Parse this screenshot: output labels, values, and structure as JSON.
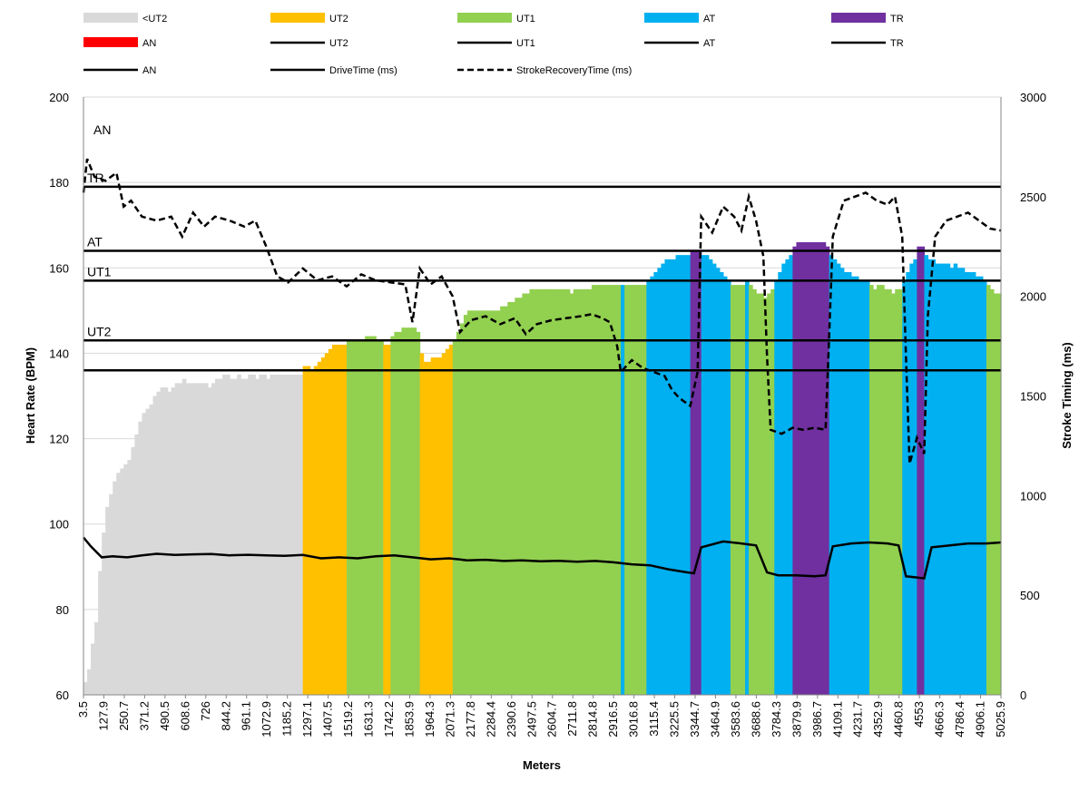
{
  "chart_data": {
    "type": "bar",
    "xlabel": "Meters",
    "ylabel": "Heart Rate (BPM)",
    "y2label": "Stroke Timing (ms)",
    "ylim": [
      60,
      200
    ],
    "y2lim": [
      0,
      3000
    ],
    "yticks": [
      60,
      80,
      100,
      120,
      140,
      160,
      180,
      200
    ],
    "y2ticks": [
      0,
      500,
      1000,
      1500,
      2000,
      2500,
      3000
    ],
    "grid": "horizontal",
    "legend_position": "top",
    "x_ticks": [
      "3.5",
      "127.9",
      "250.7",
      "371.2",
      "490.5",
      "608.6",
      "726",
      "844.2",
      "961.1",
      "1072.9",
      "1185.2",
      "1297.1",
      "1407.5",
      "1519.2",
      "1631.3",
      "1742.2",
      "1853.9",
      "1964.3",
      "2071.3",
      "2177.8",
      "2284.4",
      "2390.6",
      "2497.5",
      "2604.7",
      "2711.8",
      "2814.8",
      "2916.5",
      "3016.8",
      "3115.4",
      "3225.5",
      "3344.7",
      "3464.9",
      "3583.6",
      "3688.6",
      "3784.3",
      "3879.9",
      "3986.7",
      "4109.1",
      "4231.7",
      "4352.9",
      "4460.8",
      "4553",
      "4666.3",
      "4786.4",
      "4906.1",
      "5025.9"
    ],
    "zones": [
      {
        "name": "<UT2",
        "color": "#D9D9D9"
      },
      {
        "name": "UT2",
        "color": "#FFC000"
      },
      {
        "name": "UT1",
        "color": "#92D050"
      },
      {
        "name": "AT",
        "color": "#00B0F0"
      },
      {
        "name": "TR",
        "color": "#7030A0"
      },
      {
        "name": "AN",
        "color": "#FF0000"
      }
    ],
    "legend": [
      {
        "label": "<UT2",
        "kind": "swatch",
        "color": "#D9D9D9"
      },
      {
        "label": "UT2",
        "kind": "swatch",
        "color": "#FFC000"
      },
      {
        "label": "UT1",
        "kind": "swatch",
        "color": "#92D050"
      },
      {
        "label": "AT",
        "kind": "swatch",
        "color": "#00B0F0"
      },
      {
        "label": "TR",
        "kind": "swatch",
        "color": "#7030A0"
      },
      {
        "label": "AN",
        "kind": "swatch",
        "color": "#FF0000"
      },
      {
        "label": "UT2",
        "kind": "line"
      },
      {
        "label": "UT1",
        "kind": "line"
      },
      {
        "label": "AT",
        "kind": "line"
      },
      {
        "label": "TR",
        "kind": "line"
      },
      {
        "label": "AN",
        "kind": "line"
      },
      {
        "label": "DriveTime (ms)",
        "kind": "line"
      },
      {
        "label": "StrokeRecoveryTime (ms)",
        "kind": "dash"
      }
    ],
    "thresholds": [
      {
        "label": "AN",
        "value": 192
      },
      {
        "label": "TR",
        "value": 179
      },
      {
        "label": "AT",
        "value": 164
      },
      {
        "label": "UT1",
        "value": 157
      },
      {
        "label": "UT2",
        "value": 143
      },
      {
        "label": "",
        "value": 136
      }
    ],
    "heart_rate_segments": [
      {
        "start": 0,
        "end": 8,
        "zone": "<UT2",
        "hr": [
          63,
          66,
          72,
          77,
          89,
          98,
          104,
          107
        ]
      },
      {
        "start": 8,
        "end": 20,
        "zone": "<UT2",
        "hr": [
          110,
          112,
          113,
          114,
          115,
          118,
          121,
          124,
          126,
          127,
          128,
          130
        ]
      },
      {
        "start": 20,
        "end": 60,
        "zone": "<UT2",
        "hr": [
          131,
          132,
          132,
          131,
          132,
          133,
          133,
          134,
          133,
          133,
          133,
          133,
          133,
          133,
          132,
          133,
          134,
          134,
          135,
          135,
          134,
          134,
          135,
          134,
          134,
          135,
          135,
          134,
          135,
          135,
          134,
          135,
          135,
          135,
          135,
          135,
          135,
          135,
          135,
          135
        ]
      },
      {
        "start": 60,
        "end": 72,
        "zone": "UT2",
        "hr": [
          137,
          137,
          136,
          137,
          138,
          139,
          140,
          141,
          142,
          142,
          142,
          142
        ]
      },
      {
        "start": 72,
        "end": 82,
        "zone": "UT1",
        "hr": [
          143,
          143,
          143,
          143,
          143,
          144,
          144,
          144,
          143,
          143
        ]
      },
      {
        "start": 82,
        "end": 84,
        "zone": "UT2",
        "hr": [
          142,
          142
        ]
      },
      {
        "start": 84,
        "end": 92,
        "zone": "UT1",
        "hr": [
          144,
          145,
          145,
          146,
          146,
          146,
          146,
          145
        ]
      },
      {
        "start": 92,
        "end": 101,
        "zone": "UT2",
        "hr": [
          140,
          138,
          138,
          139,
          139,
          139,
          140,
          141,
          142
        ]
      },
      {
        "start": 101,
        "end": 147,
        "zone": "UT1",
        "hr": [
          143,
          145,
          147,
          149,
          150,
          150,
          150,
          150,
          150,
          150,
          150,
          150,
          150,
          151,
          151,
          152,
          152,
          153,
          153,
          154,
          154,
          155,
          155,
          155,
          155,
          155,
          155,
          155,
          155,
          155,
          155,
          155,
          154,
          155,
          155,
          155,
          155,
          155,
          156,
          156,
          156,
          156,
          156,
          156,
          156,
          156
        ]
      },
      {
        "start": 147,
        "end": 148,
        "zone": "AT",
        "hr": [
          156
        ]
      },
      {
        "start": 148,
        "end": 154,
        "zone": "UT1",
        "hr": [
          156,
          156,
          156,
          156,
          156,
          156
        ]
      },
      {
        "start": 154,
        "end": 166,
        "zone": "AT",
        "hr": [
          157,
          158,
          159,
          160,
          161,
          162,
          162,
          162,
          163,
          163,
          163,
          163
        ]
      },
      {
        "start": 166,
        "end": 169,
        "zone": "TR",
        "hr": [
          164,
          164,
          164
        ]
      },
      {
        "start": 169,
        "end": 177,
        "zone": "AT",
        "hr": [
          163,
          163,
          162,
          161,
          160,
          159,
          158,
          157
        ]
      },
      {
        "start": 177,
        "end": 181,
        "zone": "UT1",
        "hr": [
          156,
          156,
          156,
          156
        ]
      },
      {
        "start": 181,
        "end": 182,
        "zone": "AT",
        "hr": [
          157
        ]
      },
      {
        "start": 182,
        "end": 189,
        "zone": "UT1",
        "hr": [
          156,
          155,
          154,
          154,
          153,
          154,
          155
        ]
      },
      {
        "start": 189,
        "end": 194,
        "zone": "AT",
        "hr": [
          157,
          159,
          161,
          162,
          163
        ]
      },
      {
        "start": 194,
        "end": 204,
        "zone": "TR",
        "hr": [
          165,
          166,
          166,
          166,
          166,
          166,
          166,
          166,
          166,
          165
        ]
      },
      {
        "start": 204,
        "end": 215,
        "zone": "AT",
        "hr": [
          163,
          162,
          161,
          160,
          159,
          159,
          158,
          158,
          157,
          157,
          157
        ]
      },
      {
        "start": 215,
        "end": 224,
        "zone": "UT1",
        "hr": [
          156,
          155,
          156,
          156,
          155,
          155,
          154,
          155,
          155
        ]
      },
      {
        "start": 224,
        "end": 228,
        "zone": "AT",
        "hr": [
          157,
          159,
          161,
          162
        ]
      },
      {
        "start": 228,
        "end": 230,
        "zone": "TR",
        "hr": [
          165,
          165
        ]
      },
      {
        "start": 230,
        "end": 247,
        "zone": "AT",
        "hr": [
          163,
          162,
          162,
          161,
          161,
          161,
          161,
          160,
          161,
          160,
          160,
          159,
          159,
          159,
          158,
          158,
          157
        ]
      },
      {
        "start": 247,
        "end": 251,
        "zone": "UT1",
        "hr": [
          156,
          155,
          154,
          154
        ]
      }
    ],
    "drive_time_ms": [
      {
        "x": 0,
        "y": 790
      },
      {
        "x": 2,
        "y": 745
      },
      {
        "x": 5,
        "y": 690
      },
      {
        "x": 8,
        "y": 695
      },
      {
        "x": 12,
        "y": 690
      },
      {
        "x": 16,
        "y": 700
      },
      {
        "x": 20,
        "y": 708
      },
      {
        "x": 25,
        "y": 702
      },
      {
        "x": 30,
        "y": 705
      },
      {
        "x": 35,
        "y": 707
      },
      {
        "x": 40,
        "y": 700
      },
      {
        "x": 45,
        "y": 703
      },
      {
        "x": 50,
        "y": 700
      },
      {
        "x": 55,
        "y": 698
      },
      {
        "x": 60,
        "y": 702
      },
      {
        "x": 65,
        "y": 685
      },
      {
        "x": 70,
        "y": 690
      },
      {
        "x": 75,
        "y": 685
      },
      {
        "x": 80,
        "y": 695
      },
      {
        "x": 85,
        "y": 700
      },
      {
        "x": 90,
        "y": 690
      },
      {
        "x": 95,
        "y": 680
      },
      {
        "x": 100,
        "y": 685
      },
      {
        "x": 105,
        "y": 675
      },
      {
        "x": 110,
        "y": 678
      },
      {
        "x": 115,
        "y": 672
      },
      {
        "x": 120,
        "y": 675
      },
      {
        "x": 125,
        "y": 670
      },
      {
        "x": 130,
        "y": 673
      },
      {
        "x": 135,
        "y": 668
      },
      {
        "x": 140,
        "y": 672
      },
      {
        "x": 145,
        "y": 665
      },
      {
        "x": 150,
        "y": 655
      },
      {
        "x": 155,
        "y": 650
      },
      {
        "x": 160,
        "y": 630
      },
      {
        "x": 165,
        "y": 615
      },
      {
        "x": 167,
        "y": 610
      },
      {
        "x": 169,
        "y": 740
      },
      {
        "x": 175,
        "y": 770
      },
      {
        "x": 180,
        "y": 760
      },
      {
        "x": 184,
        "y": 750
      },
      {
        "x": 187,
        "y": 615
      },
      {
        "x": 190,
        "y": 600
      },
      {
        "x": 195,
        "y": 600
      },
      {
        "x": 200,
        "y": 595
      },
      {
        "x": 203,
        "y": 600
      },
      {
        "x": 205,
        "y": 745
      },
      {
        "x": 210,
        "y": 760
      },
      {
        "x": 215,
        "y": 765
      },
      {
        "x": 220,
        "y": 760
      },
      {
        "x": 223,
        "y": 750
      },
      {
        "x": 225,
        "y": 595
      },
      {
        "x": 230,
        "y": 585
      },
      {
        "x": 232,
        "y": 740
      },
      {
        "x": 237,
        "y": 750
      },
      {
        "x": 242,
        "y": 760
      },
      {
        "x": 247,
        "y": 760
      },
      {
        "x": 251,
        "y": 765
      }
    ],
    "stroke_recovery_ms": [
      {
        "x": 0,
        "y": 2520
      },
      {
        "x": 1,
        "y": 2690
      },
      {
        "x": 3,
        "y": 2600
      },
      {
        "x": 6,
        "y": 2580
      },
      {
        "x": 9,
        "y": 2620
      },
      {
        "x": 11,
        "y": 2450
      },
      {
        "x": 13,
        "y": 2480
      },
      {
        "x": 16,
        "y": 2400
      },
      {
        "x": 20,
        "y": 2380
      },
      {
        "x": 24,
        "y": 2400
      },
      {
        "x": 27,
        "y": 2300
      },
      {
        "x": 30,
        "y": 2420
      },
      {
        "x": 33,
        "y": 2350
      },
      {
        "x": 36,
        "y": 2400
      },
      {
        "x": 40,
        "y": 2380
      },
      {
        "x": 44,
        "y": 2350
      },
      {
        "x": 47,
        "y": 2380
      },
      {
        "x": 50,
        "y": 2250
      },
      {
        "x": 53,
        "y": 2100
      },
      {
        "x": 56,
        "y": 2070
      },
      {
        "x": 60,
        "y": 2140
      },
      {
        "x": 64,
        "y": 2080
      },
      {
        "x": 68,
        "y": 2100
      },
      {
        "x": 72,
        "y": 2050
      },
      {
        "x": 76,
        "y": 2110
      },
      {
        "x": 80,
        "y": 2080
      },
      {
        "x": 84,
        "y": 2070
      },
      {
        "x": 88,
        "y": 2060
      },
      {
        "x": 90,
        "y": 1870
      },
      {
        "x": 92,
        "y": 2140
      },
      {
        "x": 95,
        "y": 2060
      },
      {
        "x": 98,
        "y": 2100
      },
      {
        "x": 101,
        "y": 2000
      },
      {
        "x": 103,
        "y": 1820
      },
      {
        "x": 106,
        "y": 1880
      },
      {
        "x": 110,
        "y": 1900
      },
      {
        "x": 114,
        "y": 1860
      },
      {
        "x": 118,
        "y": 1890
      },
      {
        "x": 121,
        "y": 1810
      },
      {
        "x": 124,
        "y": 1860
      },
      {
        "x": 128,
        "y": 1880
      },
      {
        "x": 132,
        "y": 1890
      },
      {
        "x": 136,
        "y": 1900
      },
      {
        "x": 139,
        "y": 1910
      },
      {
        "x": 142,
        "y": 1890
      },
      {
        "x": 144,
        "y": 1870
      },
      {
        "x": 146,
        "y": 1750
      },
      {
        "x": 147,
        "y": 1620
      },
      {
        "x": 150,
        "y": 1680
      },
      {
        "x": 153,
        "y": 1640
      },
      {
        "x": 156,
        "y": 1620
      },
      {
        "x": 159,
        "y": 1600
      },
      {
        "x": 161,
        "y": 1530
      },
      {
        "x": 163,
        "y": 1490
      },
      {
        "x": 166,
        "y": 1450
      },
      {
        "x": 168,
        "y": 1620
      },
      {
        "x": 169,
        "y": 2400
      },
      {
        "x": 172,
        "y": 2320
      },
      {
        "x": 175,
        "y": 2450
      },
      {
        "x": 178,
        "y": 2400
      },
      {
        "x": 180,
        "y": 2330
      },
      {
        "x": 182,
        "y": 2500
      },
      {
        "x": 184,
        "y": 2380
      },
      {
        "x": 186,
        "y": 2200
      },
      {
        "x": 187,
        "y": 1700
      },
      {
        "x": 188,
        "y": 1330
      },
      {
        "x": 191,
        "y": 1310
      },
      {
        "x": 194,
        "y": 1340
      },
      {
        "x": 197,
        "y": 1330
      },
      {
        "x": 200,
        "y": 1340
      },
      {
        "x": 203,
        "y": 1330
      },
      {
        "x": 204,
        "y": 1800
      },
      {
        "x": 205,
        "y": 2300
      },
      {
        "x": 208,
        "y": 2480
      },
      {
        "x": 211,
        "y": 2500
      },
      {
        "x": 214,
        "y": 2520
      },
      {
        "x": 217,
        "y": 2480
      },
      {
        "x": 220,
        "y": 2460
      },
      {
        "x": 222,
        "y": 2500
      },
      {
        "x": 224,
        "y": 2300
      },
      {
        "x": 225,
        "y": 1700
      },
      {
        "x": 226,
        "y": 1160
      },
      {
        "x": 228,
        "y": 1290
      },
      {
        "x": 230,
        "y": 1210
      },
      {
        "x": 231,
        "y": 1900
      },
      {
        "x": 233,
        "y": 2300
      },
      {
        "x": 236,
        "y": 2380
      },
      {
        "x": 239,
        "y": 2400
      },
      {
        "x": 242,
        "y": 2420
      },
      {
        "x": 245,
        "y": 2380
      },
      {
        "x": 248,
        "y": 2340
      },
      {
        "x": 251,
        "y": 2330
      }
    ]
  }
}
